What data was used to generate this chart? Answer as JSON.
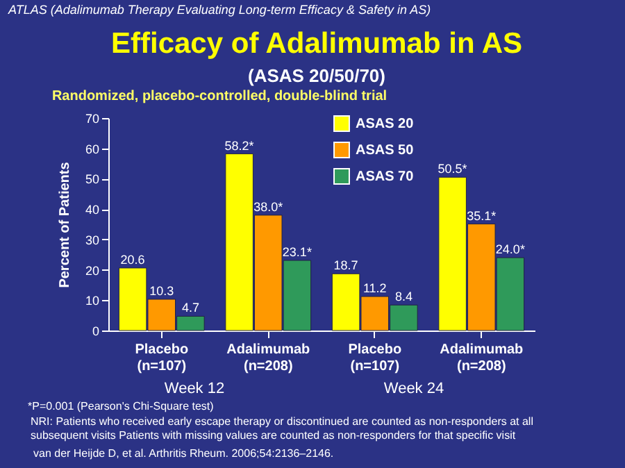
{
  "chart_data": {
    "type": "bar",
    "title": "Efficacy of Adalimumab in AS",
    "subtitle": "(ASAS 20/50/70)",
    "ylabel": "Percent of Patients",
    "categories": [
      "Placebo\n(n=107)",
      "Adalimumab\n(n=208)",
      "Placebo\n(n=107)",
      "Adalimumab\n(n=208)"
    ],
    "series": [
      {
        "name": "ASAS 20",
        "color": "#ffff00",
        "values": [
          20.6,
          58.2,
          18.7,
          50.5
        ],
        "value_labels": [
          "20.6",
          "58.2*",
          "18.7",
          "50.5*"
        ]
      },
      {
        "name": "ASAS 50",
        "color": "#ff9900",
        "values": [
          10.3,
          38.0,
          11.2,
          35.1
        ],
        "value_labels": [
          "10.3",
          "38.0*",
          "11.2",
          "35.1*"
        ]
      },
      {
        "name": "ASAS 70",
        "color": "#2f9a5a",
        "values": [
          4.7,
          23.1,
          8.4,
          24.0
        ],
        "value_labels": [
          "4.7",
          "23.1*",
          "8.4",
          "24.0*"
        ]
      }
    ],
    "ylim": [
      0,
      70
    ],
    "yticks": [
      0,
      10,
      20,
      30,
      40,
      50,
      60,
      70
    ],
    "grid": false,
    "legend": "top right",
    "annotations": [
      "ATLAS (Adalimumab Therapy Evaluating Long-term Efficacy & Safety in AS)",
      "Randomized, placebo-controlled, double-blind trial",
      "Week 12",
      "Week 24",
      "*P=0.001 (Pearson's Chi-Square test)",
      "NRI: Patients who received early escape therapy or discontinued are counted as non-responders at all",
      "subsequent visits Patients with missing values are counted as non-responders for that specific visit",
      "van der Heijde D, et al. Arthritis Rheum. 2006;54:2136–2146."
    ]
  }
}
